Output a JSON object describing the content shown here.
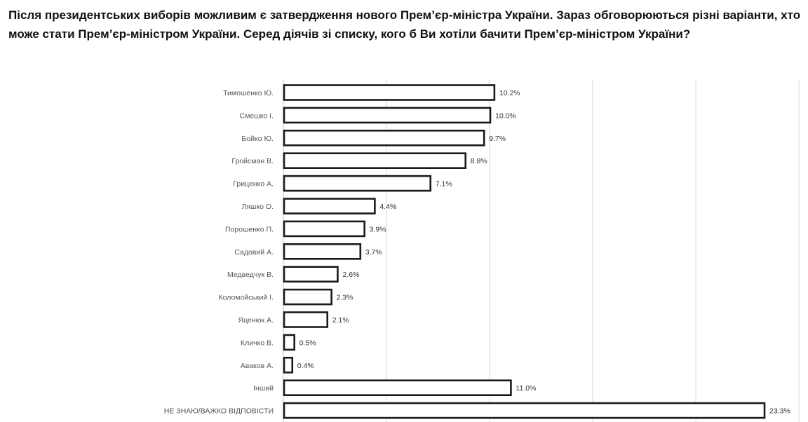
{
  "question": "Після президентських виборів можливим є затвердження нового Прем’єр-міністра України. Зараз обговорюються різні варіанти, хто може стати Прем’єр-міністром України.  Серед діячів зі списку, кого б Ви хотіли бачити Прем’єр-міністром України?",
  "chart_data": {
    "type": "bar",
    "orientation": "horizontal",
    "title": "",
    "xlabel": "",
    "ylabel": "",
    "xlim": [
      0,
      25
    ],
    "grid": true,
    "legend": "none",
    "unit": "%",
    "categories": [
      "Тимошенко Ю.",
      "Смешко І.",
      "Бойко Ю.",
      "Гройсман В.",
      "Гриценко А.",
      "Ляшко О.",
      "Порошенко П.",
      "Садовий А.",
      "Медведчук В.",
      "Коломойський І.",
      "Яценюк А.",
      "Кличко В.",
      "Аваков А.",
      "Інший",
      "НЕ ЗНАЮ/ВАЖКО ВІДПОВІСТИ"
    ],
    "values": [
      10.2,
      10.0,
      9.7,
      8.8,
      7.1,
      4.4,
      3.9,
      3.7,
      2.6,
      2.3,
      2.1,
      0.5,
      0.4,
      11.0,
      23.3
    ],
    "value_labels": [
      "10.2%",
      "10.0%",
      "9.7%",
      "8.8%",
      "7.1%",
      "4.4%",
      "3.9%",
      "3.7%",
      "2.6%",
      "2.3%",
      "2.1%",
      "0.5%",
      "0.4%",
      "11.0%",
      "23.3%"
    ]
  },
  "colors": {
    "bar_fill": "#ffffff",
    "bar_stroke": "#1a1a1a",
    "grid": "#d9d9d9"
  }
}
